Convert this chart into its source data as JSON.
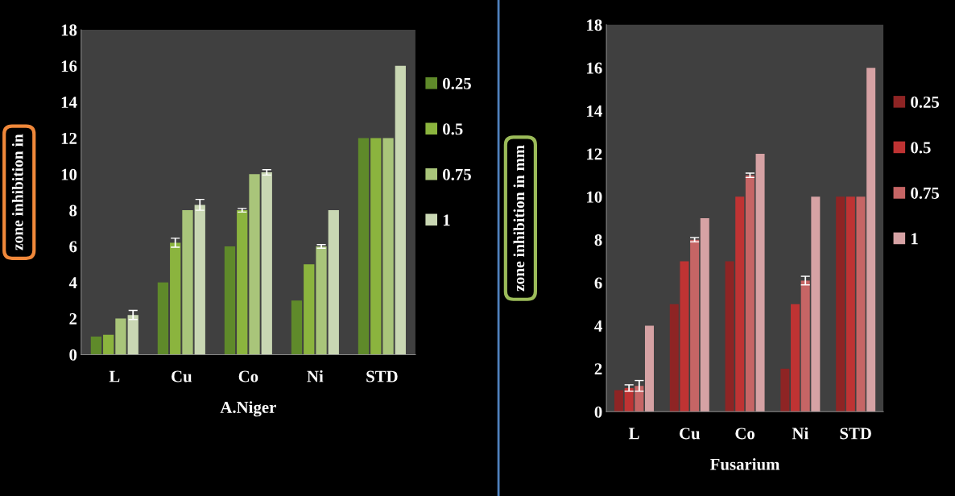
{
  "chart_data": [
    {
      "type": "bar",
      "categories": [
        "L",
        "Cu",
        "Co",
        "Ni",
        "STD"
      ],
      "xlabel": "A.Niger",
      "ylabel": "zone inhibition in",
      "ylim": [
        0,
        18
      ],
      "yticks": [
        0,
        2,
        4,
        6,
        8,
        10,
        12,
        14,
        16,
        18
      ],
      "grid": false,
      "legend": "right",
      "series": [
        {
          "name": "0.25",
          "color": "#5f8a2a",
          "values": [
            1,
            4,
            6,
            3,
            12
          ],
          "errors": [
            null,
            null,
            null,
            null,
            null
          ]
        },
        {
          "name": "0.5",
          "color": "#8bb43e",
          "values": [
            1.1,
            6.2,
            8,
            5,
            12
          ],
          "errors": [
            null,
            0.25,
            0.1,
            null,
            null
          ]
        },
        {
          "name": "0.75",
          "color": "#a9c57a",
          "values": [
            2,
            8,
            10,
            6,
            12
          ],
          "errors": [
            null,
            null,
            null,
            0.1,
            null
          ]
        },
        {
          "name": "1",
          "color": "#c9d7b3",
          "values": [
            2.2,
            8.3,
            10.1,
            8,
            16
          ],
          "errors": [
            0.25,
            0.3,
            0.15,
            null,
            null
          ]
        }
      ]
    },
    {
      "type": "bar",
      "categories": [
        "L",
        "Cu",
        "Co",
        "Ni",
        "STD"
      ],
      "xlabel": "Fusarium",
      "ylabel": "zone inhibition in mm",
      "ylim": [
        0,
        18
      ],
      "yticks": [
        0,
        2,
        4,
        6,
        8,
        10,
        12,
        14,
        16,
        18
      ],
      "grid": false,
      "legend": "right",
      "series": [
        {
          "name": "0.25",
          "color": "#8e2424",
          "values": [
            1,
            5,
            7,
            2,
            10
          ],
          "errors": [
            null,
            null,
            null,
            null,
            null
          ]
        },
        {
          "name": "0.5",
          "color": "#bf3333",
          "values": [
            1.1,
            7,
            10,
            5,
            10
          ],
          "errors": [
            0.15,
            null,
            null,
            null,
            null
          ]
        },
        {
          "name": "0.75",
          "color": "#c66565",
          "values": [
            1.2,
            8,
            11,
            6.1,
            10
          ],
          "errors": [
            0.25,
            0.1,
            0.1,
            0.2,
            null
          ]
        },
        {
          "name": "1",
          "color": "#d6a2a4",
          "values": [
            4,
            9,
            12,
            10,
            16
          ],
          "errors": [
            null,
            null,
            null,
            null,
            null
          ]
        }
      ]
    }
  ]
}
